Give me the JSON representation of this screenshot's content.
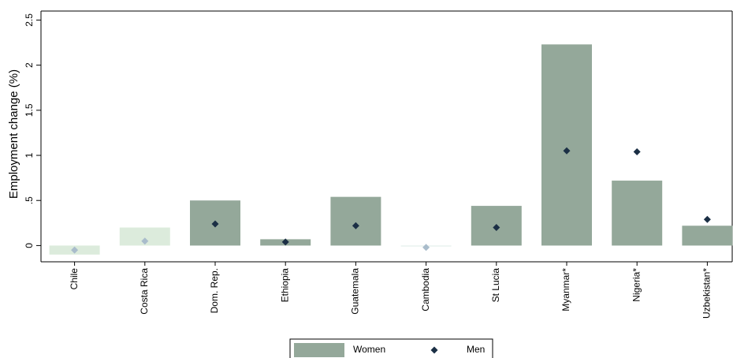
{
  "chart_data": {
    "type": "bar",
    "y_label": "Employment change (%)",
    "categories": [
      "Chile",
      "Costa Rica",
      "Dom. Rep.",
      "Ethiopia",
      "Guatemala",
      "Cambodia",
      "St Lucia",
      "Myanmar*",
      "Nigeria*",
      "Uzbekistan*"
    ],
    "series": [
      {
        "name": "Women",
        "mark": "bar",
        "color": "#94a89a",
        "colors": [
          "#dcebdc",
          "#dcebdc",
          "#94a89a",
          "#94a89a",
          "#94a89a",
          "#e2eeea",
          "#94a89a",
          "#94a89a",
          "#94a89a",
          "#94a89a"
        ],
        "values": [
          -0.1,
          0.2,
          0.5,
          0.07,
          0.54,
          -0.01,
          0.44,
          2.23,
          0.72,
          0.22
        ]
      },
      {
        "name": "Men",
        "mark": "diamond",
        "color": "#1b2f45",
        "colors": [
          "#a9bccb",
          "#a9bccb",
          "#1b2f45",
          "#1b2f45",
          "#1b2f45",
          "#a9bccb",
          "#1b2f45",
          "#1b2f45",
          "#1b2f45",
          "#1b2f45"
        ],
        "values": [
          -0.05,
          0.05,
          0.24,
          0.04,
          0.22,
          -0.02,
          0.2,
          1.05,
          1.04,
          0.29
        ]
      }
    ],
    "ylim": [
      -0.18,
      2.6
    ],
    "yticks": [
      0,
      {
        "value": 0.5,
        "label": ".5"
      },
      1,
      1.5,
      2,
      2.5
    ]
  }
}
